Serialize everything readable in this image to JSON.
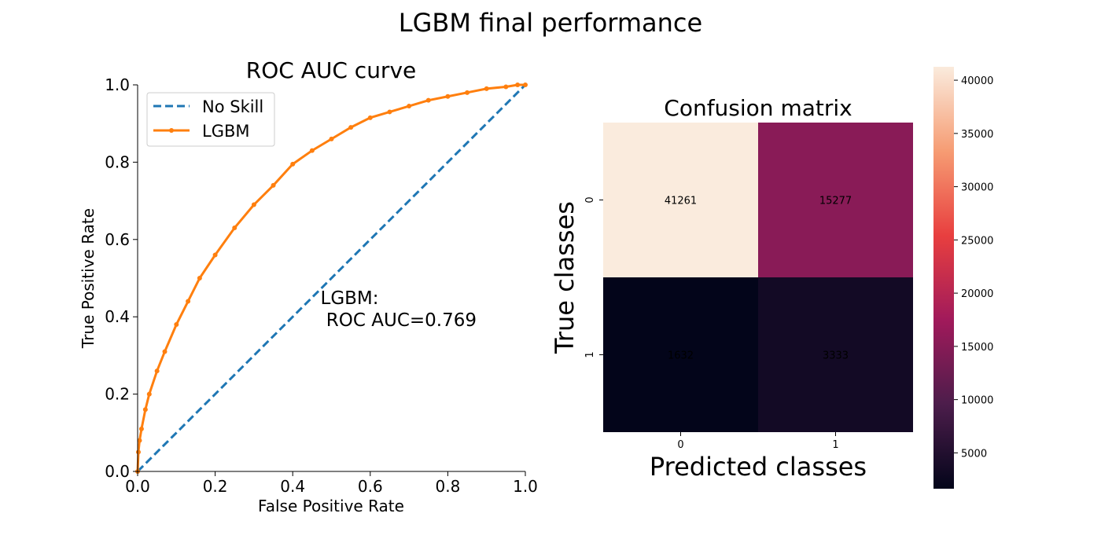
{
  "figure": {
    "suptitle": "LGBM final performance"
  },
  "chart_data": [
    {
      "type": "line",
      "title": "ROC AUC curve",
      "xlabel": "False Positive Rate",
      "ylabel": "True Positive Rate",
      "xlim": [
        0.0,
        1.0
      ],
      "ylim": [
        0.0,
        1.0
      ],
      "x_ticks": [
        "0.0",
        "0.2",
        "0.4",
        "0.6",
        "0.8",
        "1.0"
      ],
      "y_ticks": [
        "0.0",
        "0.2",
        "0.4",
        "0.6",
        "0.8",
        "1.0"
      ],
      "grid": false,
      "legend": {
        "placement": "upper-left",
        "entries": [
          "No Skill",
          "LGBM"
        ]
      },
      "annotation": {
        "line1": "LGBM:",
        "line2": " ROC AUC=0.769",
        "x": 0.5,
        "y": 0.37
      },
      "series": [
        {
          "name": "No Skill",
          "style": "dashed",
          "color": "#1f77b4",
          "x": [
            0.0,
            1.0
          ],
          "y": [
            0.0,
            1.0
          ]
        },
        {
          "name": "LGBM",
          "style": "solid-markers",
          "color": "#ff7f0e",
          "x": [
            0.0,
            0.002,
            0.005,
            0.01,
            0.02,
            0.03,
            0.05,
            0.07,
            0.1,
            0.13,
            0.16,
            0.2,
            0.25,
            0.3,
            0.35,
            0.4,
            0.45,
            0.5,
            0.55,
            0.6,
            0.65,
            0.7,
            0.75,
            0.8,
            0.85,
            0.9,
            0.95,
            0.98,
            1.0
          ],
          "y": [
            0.0,
            0.05,
            0.08,
            0.11,
            0.16,
            0.2,
            0.26,
            0.31,
            0.38,
            0.44,
            0.5,
            0.56,
            0.63,
            0.69,
            0.74,
            0.795,
            0.83,
            0.86,
            0.89,
            0.915,
            0.93,
            0.945,
            0.96,
            0.97,
            0.98,
            0.99,
            0.995,
            1.0,
            1.0
          ]
        }
      ]
    },
    {
      "type": "heatmap",
      "title": "Confusion matrix",
      "xlabel": "Predicted classes",
      "ylabel": "True classes",
      "x_categories": [
        "0",
        "1"
      ],
      "y_categories": [
        "0",
        "1"
      ],
      "values": [
        [
          41261,
          15277
        ],
        [
          1632,
          3333
        ]
      ],
      "colorbar": {
        "vmin": 1632,
        "vmax": 41261,
        "ticks": [
          5000,
          10000,
          15000,
          20000,
          25000,
          30000,
          35000,
          40000
        ],
        "colormap": "rocket",
        "colors": [
          "#03051a",
          "#4c1d4b",
          "#a11a5b",
          "#e83f3f",
          "#f69c73",
          "#faebdd"
        ]
      }
    }
  ]
}
